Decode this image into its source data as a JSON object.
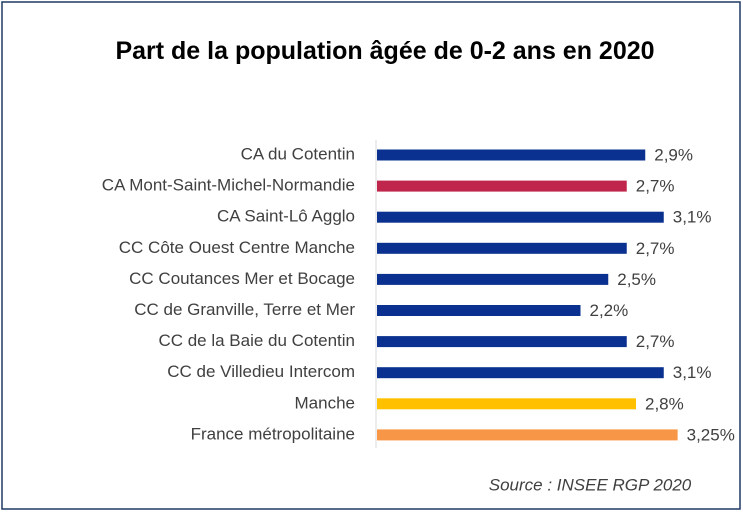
{
  "chart_data": {
    "type": "bar",
    "orientation": "horizontal",
    "title": "Part de la population âgée de 0-2 ans en 2020",
    "categories": [
      "CA du Cotentin",
      "CA Mont-Saint-Michel-Normandie",
      "CA Saint-Lô Agglo",
      "CC Côte Ouest Centre Manche",
      "CC Coutances Mer et Bocage",
      "CC de Granville, Terre et Mer",
      "CC de la Baie du Cotentin",
      "CC de Villedieu Intercom",
      "Manche",
      "France métropolitaine"
    ],
    "values": [
      2.9,
      2.7,
      3.1,
      2.7,
      2.5,
      2.2,
      2.7,
      3.1,
      2.8,
      3.25
    ],
    "value_labels": [
      "2,9%",
      "2,7%",
      "3,1%",
      "2,7%",
      "2,5%",
      "2,2%",
      "2,7%",
      "3,1%",
      "2,8%",
      "3,25%"
    ],
    "colors": [
      "#0a318f",
      "#c0264b",
      "#0a318f",
      "#0a318f",
      "#0a318f",
      "#0a318f",
      "#0a318f",
      "#0a318f",
      "#ffc000",
      "#f79646"
    ],
    "source": "Source : INSEE RGP 2020"
  }
}
